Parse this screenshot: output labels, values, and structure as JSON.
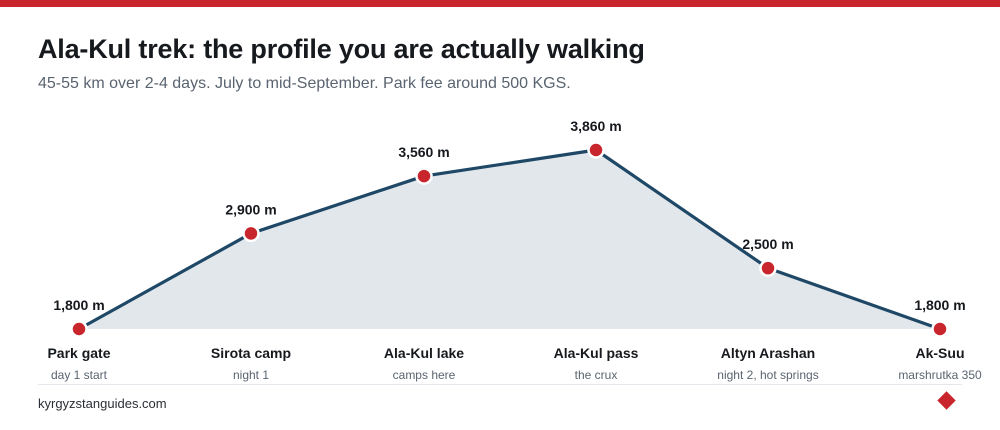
{
  "header": {
    "title": "Ala-Kul trek: the profile you are actually walking",
    "subtitle": "45-55 km over 2-4 days. July to mid-September. Park fee around 500 KGS."
  },
  "footer": {
    "source": "kyrgyzstanguides.com"
  },
  "colors": {
    "accent": "#c8252c",
    "line": "#1e4866",
    "area": "#e2e7ec"
  },
  "chart_data": {
    "type": "area",
    "title": "Ala-Kul trek: the profile you are actually walking",
    "categories": [
      "Park gate",
      "Sirota camp",
      "Ala-Kul lake",
      "Ala-Kul pass",
      "Altyn Arashan",
      "Ak-Suu"
    ],
    "sublabels": [
      "day 1 start",
      "night 1",
      "camps here",
      "the crux",
      "night 2, hot springs",
      "marshrutka 350"
    ],
    "values": [
      1800,
      2900,
      3560,
      3860,
      2500,
      1800
    ],
    "data_labels": [
      "1,800 m",
      "2,900 m",
      "3,560 m",
      "3,860 m",
      "2,500 m",
      "1,800 m"
    ],
    "unit": "m",
    "ylim": [
      1800,
      3860
    ],
    "grid": false,
    "legend": "none"
  }
}
